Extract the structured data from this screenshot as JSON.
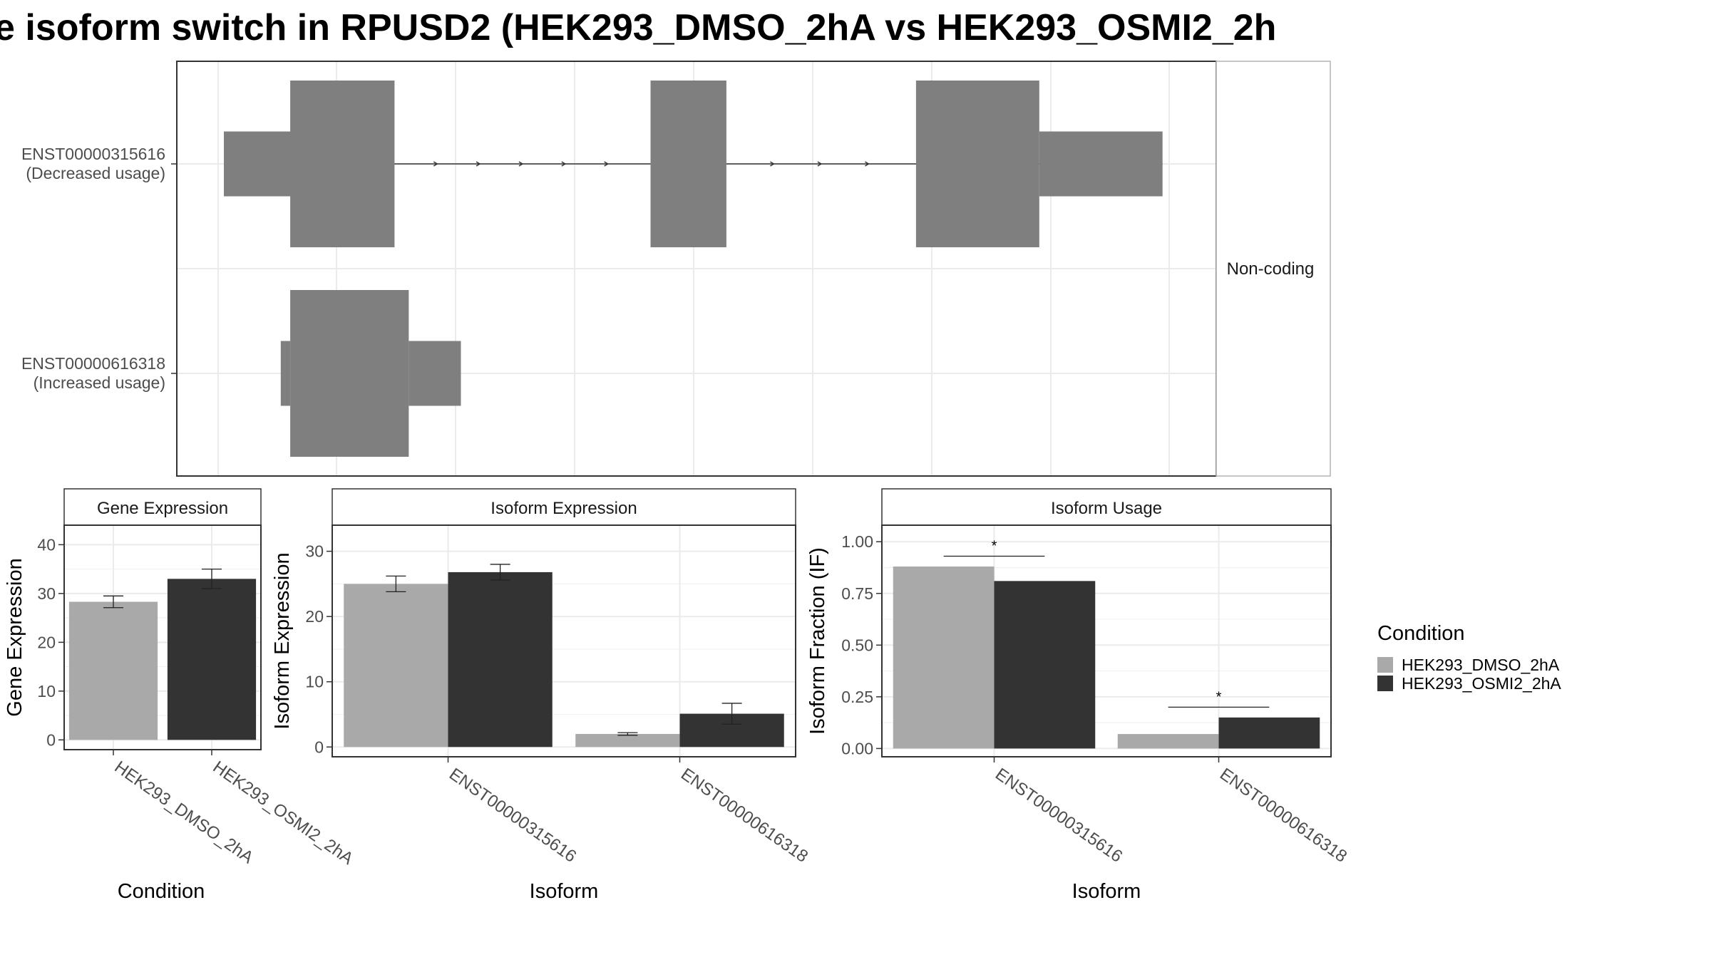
{
  "title": "e isoform switch in RPUSD2 (HEK293_DMSO_2hA vs HEK293_OSMI2_2h",
  "colors": {
    "dmso": "#A9A9A9",
    "osmi": "#333333",
    "exon": "#7F7F7F",
    "grid": "#EBEBEB",
    "strip_bg": "#FFFFFF",
    "panel_border": "#333333",
    "axis_text": "#4D4D4D",
    "text": "#000000"
  },
  "legend": {
    "title": "Condition",
    "items": [
      "HEK293_DMSO_2hA",
      "HEK293_OSMI2_2hA"
    ]
  },
  "structure": {
    "strip_label": "Non-coding",
    "transcripts": [
      {
        "id": "ENST00000315616",
        "note": "(Decreased usage)",
        "exons": [
          [
            0,
            0.14,
            0.07
          ],
          [
            0.07,
            0.18,
            0.18
          ],
          [
            0.45,
            0.53,
            0.18
          ],
          [
            0.73,
            0.86,
            0.18
          ],
          [
            0.86,
            0.99,
            0.07
          ]
        ],
        "intron_arrows": 8
      },
      {
        "id": "ENST00000616318",
        "note": "(Increased usage)",
        "exons": [
          [
            0.06,
            0.07,
            0.07
          ],
          [
            0.07,
            0.195,
            0.18
          ],
          [
            0.195,
            0.25,
            0.07
          ]
        ],
        "intron_arrows": 0
      }
    ]
  },
  "chart_data": [
    {
      "type": "bar",
      "panel": "Gene Expression",
      "xlabel": "Condition",
      "ylabel": "Gene Expression",
      "categories": [
        "HEK293_DMSO_2hA",
        "HEK293_OSMI2_2hA"
      ],
      "values": [
        28.3,
        33.0
      ],
      "errors": [
        1.2,
        2.0
      ],
      "yticks": [
        0,
        10,
        20,
        30,
        40
      ],
      "ylim": [
        -2,
        44
      ]
    },
    {
      "type": "bar",
      "panel": "Isoform Expression",
      "xlabel": "Isoform",
      "ylabel": "Isoform Expression",
      "categories": [
        "ENST00000315616",
        "ENST00000616318"
      ],
      "series": [
        {
          "name": "HEK293_DMSO_2hA",
          "values": [
            25.0,
            2.0
          ],
          "errors": [
            1.2,
            0.2
          ]
        },
        {
          "name": "HEK293_OSMI2_2hA",
          "values": [
            26.8,
            5.1
          ],
          "errors": [
            1.2,
            1.6
          ]
        }
      ],
      "yticks": [
        0,
        10,
        20,
        30
      ],
      "ylim": [
        -1.5,
        34
      ]
    },
    {
      "type": "bar",
      "panel": "Isoform Usage",
      "xlabel": "Isoform",
      "ylabel": "Isoform Fraction (IF)",
      "categories": [
        "ENST00000315616",
        "ENST00000616318"
      ],
      "series": [
        {
          "name": "HEK293_DMSO_2hA",
          "values": [
            0.88,
            0.07
          ]
        },
        {
          "name": "HEK293_OSMI2_2hA",
          "values": [
            0.81,
            0.15
          ]
        }
      ],
      "significance": [
        {
          "label": "*",
          "y": 0.93
        },
        {
          "label": "*",
          "y": 0.2
        }
      ],
      "yticks": [
        0.0,
        0.25,
        0.5,
        0.75,
        1.0
      ],
      "yticklabels": [
        "0.00",
        "0.25",
        "0.50",
        "0.75",
        "1.00"
      ],
      "ylim": [
        -0.04,
        1.08
      ]
    }
  ]
}
